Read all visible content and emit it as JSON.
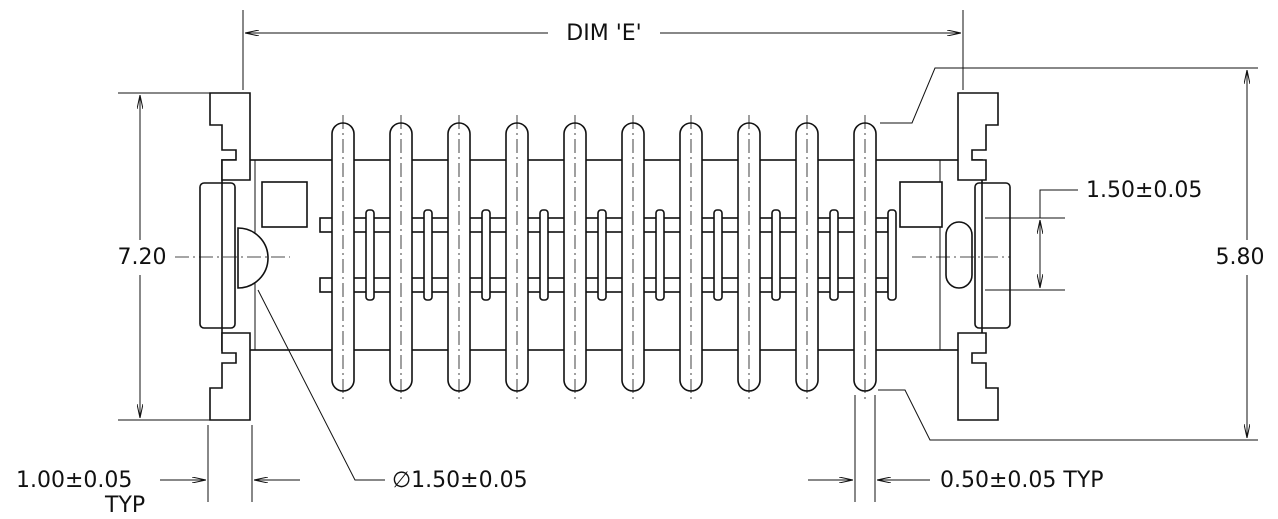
{
  "dimensions": {
    "overall_width": "DIM 'E'",
    "clip_height": "7.20",
    "body_height": "5.80",
    "row_pitch": "1.50±0.05",
    "clip_width": {
      "value": "1.00±0.05",
      "note": "TYP"
    },
    "hole_diameter": "∅1.50±0.05",
    "pin_width": "0.50±0.05 TYP"
  }
}
